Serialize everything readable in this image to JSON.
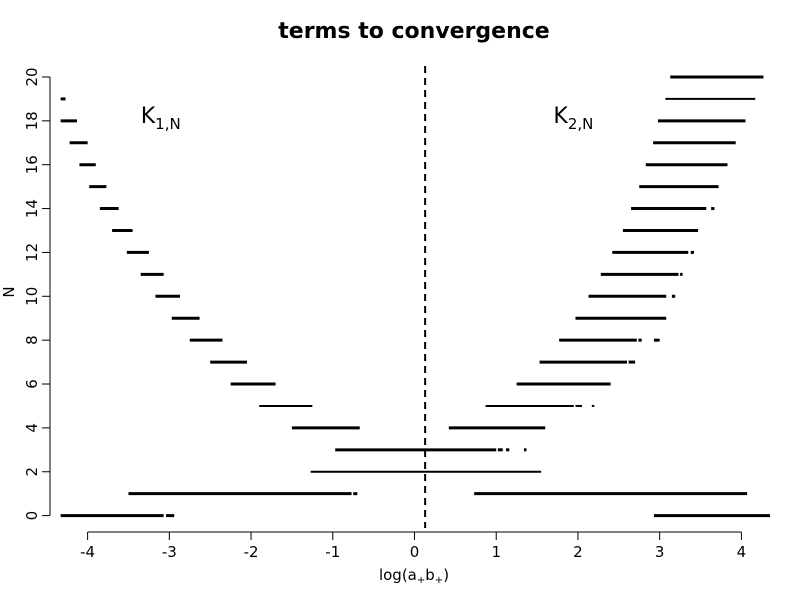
{
  "chart_data": {
    "type": "segments",
    "title": "terms to convergence",
    "xlabel": {
      "base": "log(a",
      "sub1": "+",
      "mid": "b",
      "sub2": "+",
      "end": ")"
    },
    "ylabel": "N",
    "xlim": [
      -4.35,
      4.35
    ],
    "ylim": [
      -0.2,
      20.5
    ],
    "x_ticks": [
      -4,
      -3,
      -2,
      -1,
      0,
      1,
      2,
      3,
      4
    ],
    "y_ticks": [
      0,
      2,
      4,
      6,
      8,
      10,
      12,
      14,
      16,
      18,
      20
    ],
    "grid": false,
    "vline": {
      "x": 0.13,
      "style": "dashed"
    },
    "annotations": [
      {
        "main": "K",
        "sub": "1,N",
        "x": -3.35,
        "y": 17.9
      },
      {
        "main": "K",
        "sub": "2,N",
        "x": 1.7,
        "y": 17.9
      }
    ],
    "series": [
      {
        "segments": [
          {
            "n": 0,
            "x1": -4.33,
            "x2": -3.07,
            "w": 3
          },
          {
            "n": 0,
            "x1": -3.04,
            "x2": -2.94,
            "w": 3
          },
          {
            "n": 1,
            "x1": -3.5,
            "x2": -0.77,
            "w": 3
          },
          {
            "n": 1,
            "x1": -0.75,
            "x2": -0.7,
            "w": 3
          },
          {
            "n": 2,
            "x1": -1.27,
            "x2": 1.55,
            "w": 2
          },
          {
            "n": 3,
            "x1": -0.97,
            "x2": 1.0,
            "w": 3
          },
          {
            "n": 3,
            "x1": 1.02,
            "x2": 1.08,
            "w": 3
          },
          {
            "n": 3,
            "x1": 1.12,
            "x2": 1.16,
            "w": 3
          },
          {
            "n": 3,
            "x1": 1.34,
            "x2": 1.37,
            "w": 3
          },
          {
            "n": 4,
            "x1": -1.5,
            "x2": -0.67,
            "w": 3
          },
          {
            "n": 5,
            "x1": -1.9,
            "x2": -1.25,
            "w": 2
          },
          {
            "n": 6,
            "x1": -2.25,
            "x2": -1.7,
            "w": 3
          },
          {
            "n": 7,
            "x1": -2.5,
            "x2": -2.05,
            "w": 3
          },
          {
            "n": 8,
            "x1": -2.75,
            "x2": -2.35,
            "w": 3
          },
          {
            "n": 9,
            "x1": -2.97,
            "x2": -2.63,
            "w": 3
          },
          {
            "n": 10,
            "x1": -3.17,
            "x2": -2.87,
            "w": 3
          },
          {
            "n": 11,
            "x1": -3.35,
            "x2": -3.07,
            "w": 3
          },
          {
            "n": 12,
            "x1": -3.52,
            "x2": -3.25,
            "w": 3
          },
          {
            "n": 13,
            "x1": -3.7,
            "x2": -3.45,
            "w": 3
          },
          {
            "n": 14,
            "x1": -3.85,
            "x2": -3.62,
            "w": 3
          },
          {
            "n": 15,
            "x1": -3.98,
            "x2": -3.77,
            "w": 3
          },
          {
            "n": 16,
            "x1": -4.1,
            "x2": -3.9,
            "w": 3
          },
          {
            "n": 17,
            "x1": -4.22,
            "x2": -4.0,
            "w": 3
          },
          {
            "n": 18,
            "x1": -4.33,
            "x2": -4.13,
            "w": 3
          },
          {
            "n": 19,
            "x1": -4.33,
            "x2": -4.27,
            "w": 3
          }
        ]
      },
      {
        "segments": [
          {
            "n": 0,
            "x1": 2.93,
            "x2": 4.35,
            "w": 3
          },
          {
            "n": 1,
            "x1": 0.73,
            "x2": 4.07,
            "w": 3
          },
          {
            "n": 4,
            "x1": 0.42,
            "x2": 1.6,
            "w": 3
          },
          {
            "n": 5,
            "x1": 0.87,
            "x2": 1.95,
            "w": 2
          },
          {
            "n": 5,
            "x1": 1.97,
            "x2": 2.05,
            "w": 2
          },
          {
            "n": 5,
            "x1": 2.17,
            "x2": 2.2,
            "w": 2
          },
          {
            "n": 6,
            "x1": 1.25,
            "x2": 2.4,
            "w": 3
          },
          {
            "n": 7,
            "x1": 1.53,
            "x2": 2.6,
            "w": 3
          },
          {
            "n": 7,
            "x1": 2.62,
            "x2": 2.7,
            "w": 3
          },
          {
            "n": 8,
            "x1": 1.77,
            "x2": 2.72,
            "w": 3
          },
          {
            "n": 8,
            "x1": 2.74,
            "x2": 2.78,
            "w": 3
          },
          {
            "n": 8,
            "x1": 2.93,
            "x2": 3.0,
            "w": 3
          },
          {
            "n": 9,
            "x1": 1.97,
            "x2": 3.08,
            "w": 3
          },
          {
            "n": 10,
            "x1": 2.13,
            "x2": 3.08,
            "w": 3
          },
          {
            "n": 10,
            "x1": 3.15,
            "x2": 3.19,
            "w": 3
          },
          {
            "n": 11,
            "x1": 2.28,
            "x2": 3.23,
            "w": 3
          },
          {
            "n": 11,
            "x1": 3.25,
            "x2": 3.28,
            "w": 3
          },
          {
            "n": 12,
            "x1": 2.42,
            "x2": 3.35,
            "w": 3
          },
          {
            "n": 12,
            "x1": 3.38,
            "x2": 3.42,
            "w": 3
          },
          {
            "n": 13,
            "x1": 2.55,
            "x2": 3.47,
            "w": 3
          },
          {
            "n": 14,
            "x1": 2.65,
            "x2": 3.57,
            "w": 3
          },
          {
            "n": 14,
            "x1": 3.63,
            "x2": 3.67,
            "w": 3
          },
          {
            "n": 15,
            "x1": 2.75,
            "x2": 3.72,
            "w": 3
          },
          {
            "n": 16,
            "x1": 2.83,
            "x2": 3.83,
            "w": 3
          },
          {
            "n": 17,
            "x1": 2.92,
            "x2": 3.93,
            "w": 3
          },
          {
            "n": 18,
            "x1": 2.98,
            "x2": 4.05,
            "w": 3
          },
          {
            "n": 19,
            "x1": 3.07,
            "x2": 4.17,
            "w": 2
          },
          {
            "n": 20,
            "x1": 3.13,
            "x2": 4.27,
            "w": 3
          }
        ]
      }
    ]
  }
}
